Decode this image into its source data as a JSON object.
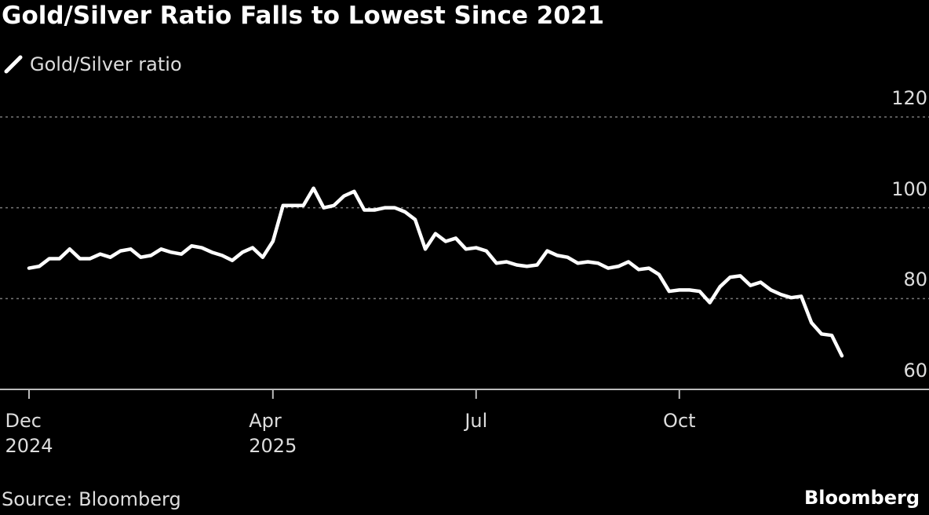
{
  "chart_data": {
    "type": "line",
    "title": "Gold/Silver Ratio Falls to Lowest Since 2021",
    "series": [
      {
        "name": "Gold/Silver ratio",
        "color": "#ffffff",
        "values": [
          86.7,
          87.1,
          88.8,
          88.8,
          90.9,
          88.8,
          88.8,
          89.8,
          89.1,
          90.5,
          90.9,
          89.1,
          89.5,
          90.9,
          90.2,
          89.8,
          91.6,
          91.2,
          90.2,
          89.5,
          88.4,
          90.2,
          91.2,
          89.1,
          92.6,
          100.5,
          100.5,
          100.5,
          104.3,
          100,
          100.5,
          102.6,
          103.6,
          99.5,
          99.5,
          100,
          100,
          99.1,
          97.4,
          90.9,
          94.3,
          92.6,
          93.3,
          90.9,
          91.2,
          90.5,
          87.8,
          88.1,
          87.4,
          87.1,
          87.4,
          90.5,
          89.5,
          89.1,
          87.8,
          88.1,
          87.8,
          86.7,
          87.1,
          88.1,
          86.4,
          86.7,
          85.3,
          81.6,
          81.9,
          81.9,
          81.6,
          79.1,
          82.6,
          84.7,
          85.0,
          82.9,
          83.6,
          81.9,
          80.9,
          80.2,
          80.5,
          74.7,
          72.2,
          71.9,
          67.4
        ]
      }
    ],
    "xlim": [
      0,
      80
    ],
    "xticks": [
      {
        "value": 0,
        "label": "Dec\n2024"
      },
      {
        "value": 24,
        "label": "Apr\n2025"
      },
      {
        "value": 44,
        "label": "Jul"
      },
      {
        "value": 64,
        "label": "Oct"
      }
    ],
    "ylim": [
      60,
      120
    ],
    "yticks": [
      60,
      80,
      100,
      120
    ],
    "grid": true,
    "source": "Source: Bloomberg",
    "brand": "Bloomberg"
  }
}
